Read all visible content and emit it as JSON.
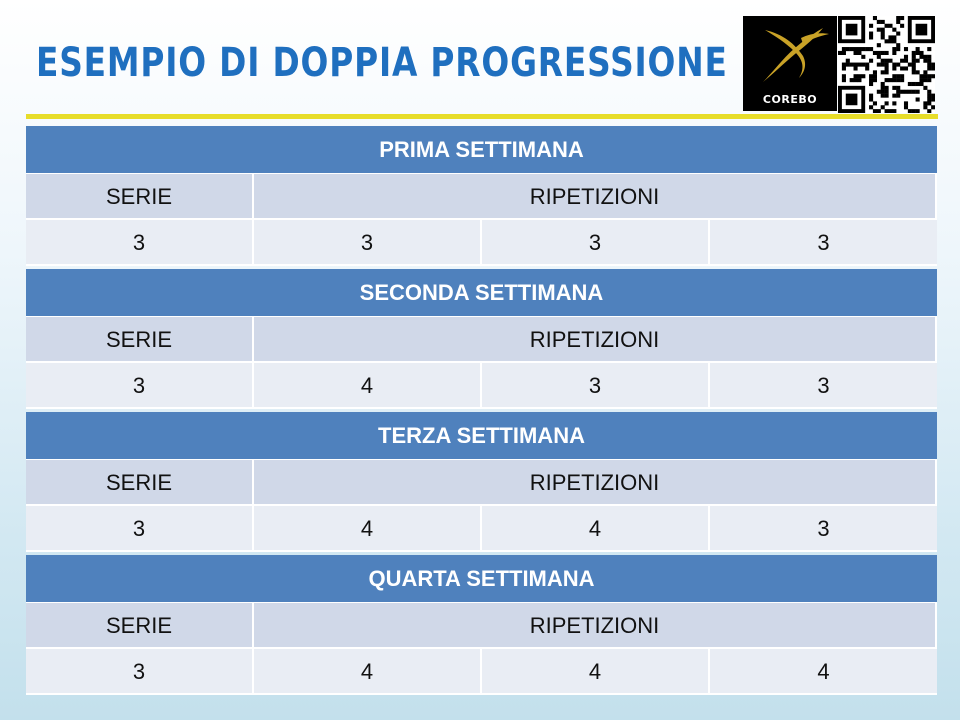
{
  "title": "ESEMPIO DI DOPPIA PROGRESSIONE",
  "logo": {
    "text": "COREBO"
  },
  "labels": {
    "series": "SERIE",
    "reps": "RIPETIZIONI"
  },
  "weeks": [
    {
      "name": "PRIMA SETTIMANA",
      "serie": "3",
      "reps": [
        "3",
        "3",
        "3"
      ]
    },
    {
      "name": "SECONDA SETTIMANA",
      "serie": "3",
      "reps": [
        "4",
        "3",
        "3"
      ]
    },
    {
      "name": "TERZA SETTIMANA",
      "serie": "3",
      "reps": [
        "4",
        "4",
        "3"
      ]
    },
    {
      "name": "QUARTA SETTIMANA",
      "serie": "3",
      "reps": [
        "4",
        "4",
        "4"
      ]
    }
  ],
  "colors": {
    "title": "#1f6fbf",
    "rule": "#e7dd2a",
    "header": "#4f81bd",
    "label_row": "#d0d8e8",
    "value_row": "#e9edf4",
    "logo_swoosh": "#c9a227"
  }
}
